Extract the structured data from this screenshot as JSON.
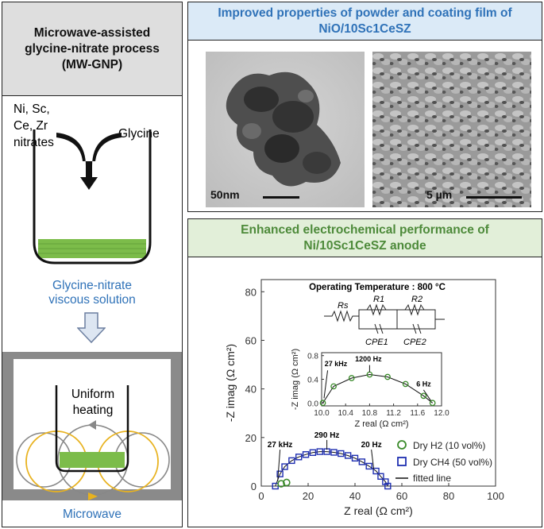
{
  "left_panel": {
    "title_lines": [
      "Microwave-assisted",
      "glycine-nitrate process",
      "(MW-GNP)"
    ],
    "reagent_lines": [
      "Ni, Sc,",
      "Ce, Zr",
      "nitrates"
    ],
    "glycine_label": "Glycine",
    "solution_lines": [
      "Glycine-nitrate",
      "viscous solution"
    ],
    "heating_lines": [
      "Uniform",
      "heating"
    ],
    "microwave_label": "Microwave"
  },
  "top_right_panel": {
    "title_lines": [
      "Improved properties of powder and coating film of",
      "NiO/10Sc1CeSZ"
    ],
    "tem_scale_label": "50nm",
    "sem_scale_label": "5 µm"
  },
  "bottom_right_panel": {
    "title_lines": [
      "Enhanced electrochemical performance of",
      "Ni/10Sc1CeSZ anode"
    ]
  },
  "chart_data": {
    "type": "scatter",
    "annotation_title": "Operating Temperature : 800 °C",
    "xlabel": "Z real (Ω cm²)",
    "ylabel": "-Z imag (Ω cm²)",
    "xlim": [
      0,
      100
    ],
    "ylim": [
      0,
      85
    ],
    "xticks": [
      0,
      20,
      40,
      60,
      80,
      100
    ],
    "yticks": [
      0,
      20,
      40,
      60,
      80
    ],
    "series": [
      {
        "name": "Dry H2 (10 vol%)",
        "marker": "circle",
        "color": "#3a8a2a",
        "x": [
          10.02,
          10.2,
          10.5,
          10.8,
          11.1,
          11.4,
          11.7,
          11.85
        ],
        "y": [
          0.0,
          0.28,
          0.42,
          0.48,
          0.44,
          0.32,
          0.12,
          0.0
        ]
      },
      {
        "name": "Dry CH4 (50 vol%)",
        "marker": "square",
        "color": "#1f2fb0",
        "x": [
          6,
          8,
          10,
          13,
          16,
          19,
          22,
          25,
          28,
          31,
          34,
          37,
          40,
          43,
          46,
          49,
          51,
          53,
          54
        ],
        "y": [
          0,
          5,
          8,
          10.5,
          12,
          13,
          13.8,
          14.2,
          14.2,
          13.9,
          13.4,
          12.6,
          11.5,
          10,
          8.2,
          6.2,
          4,
          1.8,
          0
        ]
      }
    ],
    "fitted_line_label": "fitted line",
    "main_annotations": [
      "27 kHz",
      "290 Hz",
      "20 Hz"
    ],
    "circuit_labels": [
      "Rs",
      "R1",
      "R2",
      "CPE1",
      "CPE2"
    ],
    "inset": {
      "xlabel": "Z real (Ω cm²)",
      "ylabel": "-Z imag (Ω cm²)",
      "xlim": [
        10.0,
        12.0
      ],
      "ylim": [
        -0.05,
        0.85
      ],
      "xticks": [
        "10.0",
        "10.4",
        "10.8",
        "11.2",
        "11.6",
        "12.0"
      ],
      "yticks": [
        "0.0",
        "0.4",
        "0.8"
      ],
      "annotations": [
        "27 kHz",
        "1200 Hz",
        "6 Hz"
      ]
    },
    "legend_position": "lower-right"
  },
  "colors": {
    "title_blue": "#2f72b8",
    "title_green": "#4d8a3a",
    "h2_green": "#3a8a2a",
    "ch4_blue": "#1f2fb0",
    "solution_green": "#7cbc4a",
    "microwave_gold": "#e8b21f"
  }
}
